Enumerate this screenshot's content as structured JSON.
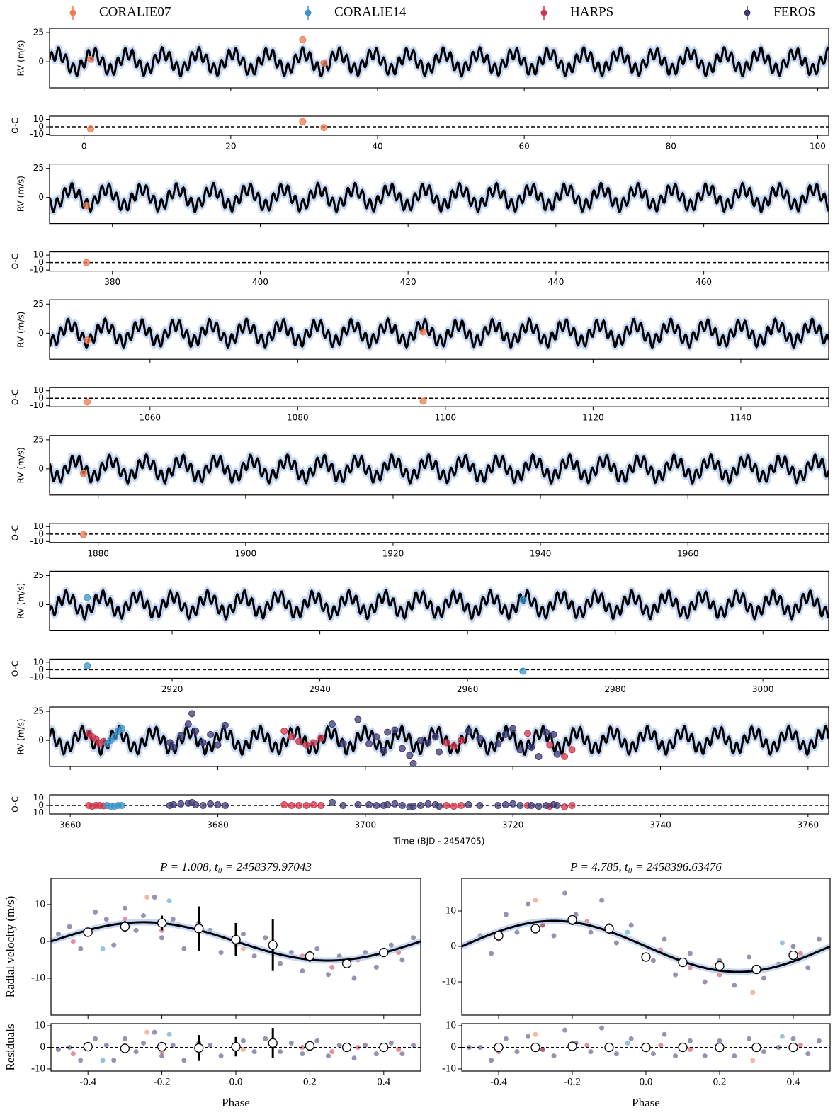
{
  "chart_data": {
    "type": "scatter",
    "series": [
      {
        "name": "CORALIE07",
        "color": "#f07a52"
      },
      {
        "name": "CORALIE14",
        "color": "#3b93c8"
      },
      {
        "name": "HARPS",
        "color": "#d1344a"
      },
      {
        "name": "FEROS",
        "color": "#3d3a73"
      }
    ],
    "model": [
      {
        "period": 1.008,
        "t0": 3674.97043,
        "semi_amplitude": 5.2
      },
      {
        "period": 4.785,
        "t0": 3691.63476,
        "semi_amplitude": 7.2
      }
    ],
    "rv_ylabel": "RV (m/s)",
    "oc_ylabel": "O-C",
    "xlabel": "Time (BJD - 2454705)",
    "rv_ylim": [
      -22.5,
      28.7
    ],
    "rv_yticks": [
      0,
      25
    ],
    "oc_ylim": [
      -11.4,
      14.3
    ],
    "oc_yticks": [
      -10,
      0,
      10
    ],
    "windows": [
      {
        "xlim": [
          -4.7,
          101.5
        ],
        "xticks": [
          0,
          20,
          40,
          60,
          80,
          100
        ],
        "series": [
          {
            "name": "CORALIE07",
            "x": [
              0.9,
              29.8,
              32.7
            ],
            "values": [
              2,
              19,
              -1
            ],
            "residuals": [
              -3,
              7,
              -1
            ]
          }
        ]
      },
      {
        "xlim": [
          371.5,
          476.9
        ],
        "xticks": [
          380,
          400,
          420,
          440,
          460
        ],
        "series": [
          {
            "name": "CORALIE07",
            "x": [
              376.5
            ],
            "values": [
              -7
            ],
            "residuals": [
              0
            ]
          }
        ]
      },
      {
        "xlim": [
          1046.4,
          1151.9
        ],
        "xticks": [
          1060,
          1080,
          1100,
          1120,
          1140
        ],
        "series": [
          {
            "name": "CORALIE07",
            "x": [
              1051.5,
              1097
            ],
            "values": [
              -6,
              1
            ],
            "residuals": [
              -5,
              -4
            ]
          }
        ]
      },
      {
        "xlim": [
          1873.4,
          1979.1
        ],
        "xticks": [
          1880,
          1900,
          1920,
          1940,
          1960
        ],
        "series": [
          {
            "name": "CORALIE07",
            "x": [
              1878
            ],
            "values": [
              -4
            ],
            "residuals": [
              -1
            ]
          }
        ]
      },
      {
        "xlim": [
          2903.4,
          3008.9
        ],
        "xticks": [
          2920,
          2940,
          2960,
          2980,
          3000
        ],
        "series": [
          {
            "name": "CORALIE14",
            "x": [
              2908.5,
              2967.5
            ],
            "values": [
              6,
              4
            ],
            "residuals": [
              5,
              -2
            ]
          }
        ]
      },
      {
        "xlim": [
          3657.2,
          3762.8
        ],
        "xticks": [
          3660,
          3680,
          3700,
          3720,
          3740,
          3760
        ],
        "series": [
          {
            "name": "HARPS",
            "x": [
              3662.5,
              3663,
              3663.5,
              3664,
              3664.5,
              3689,
              3690,
              3691,
              3692,
              3693,
              3694,
              3711,
              3712,
              3713,
              3722,
              3725,
              3727,
              3728
            ],
            "values": [
              6,
              3,
              1,
              -3,
              -1,
              8,
              3,
              -1,
              -4,
              -2,
              2,
              -2,
              -5,
              0,
              6,
              -4,
              -14,
              -8
            ],
            "residuals": [
              0,
              -1,
              0,
              0,
              -0.5,
              1,
              0,
              0,
              0,
              1,
              0,
              0,
              -1,
              0,
              0,
              -1,
              -2,
              0
            ]
          },
          {
            "name": "CORALIE14",
            "x": [
              3665,
              3665.5,
              3666,
              3666.5,
              3667
            ],
            "values": [
              -3,
              0,
              3,
              8,
              10
            ],
            "residuals": [
              0,
              -1,
              -1,
              0,
              0
            ]
          },
          {
            "name": "FEROS",
            "x": [
              3673.5,
              3674,
              3675,
              3676,
              3676.5,
              3677,
              3678,
              3679,
              3680,
              3681,
              3695.5,
              3697,
              3699,
              3700.5,
              3701.5,
              3702.5,
              3703,
              3704,
              3705,
              3706,
              3706.5,
              3707.5,
              3708.5,
              3709.5,
              3710,
              3714,
              3715.5,
              3718,
              3719,
              3720,
              3721,
              3722.5,
              3723.5,
              3724.5,
              3725.5,
              3726
            ],
            "values": [
              -2,
              -6,
              4,
              14,
              23,
              8,
              -2,
              5,
              -4,
              13,
              14,
              -3,
              18,
              -3,
              3,
              -9,
              7,
              9,
              -7,
              -13,
              -20,
              0,
              -2,
              3,
              -10,
              8,
              2,
              -3,
              5,
              10,
              -8,
              -6,
              -14,
              7,
              5,
              -12
            ],
            "residuals": [
              0,
              1,
              2,
              3,
              4,
              1,
              0,
              2,
              1,
              0,
              4,
              0,
              1,
              1,
              0,
              0,
              1,
              2,
              0,
              -2,
              -1,
              0,
              2,
              1,
              -1,
              1,
              0,
              0,
              1,
              2,
              0,
              0,
              -1,
              0,
              1,
              0
            ]
          }
        ]
      }
    ],
    "phase_xlabel": "Phase",
    "phase_ylabel": "Radial velocity (m/s)",
    "residual_ylabel": "Residuals",
    "phase_xlim": [
      -0.5,
      0.5
    ],
    "phase_xticks": [
      -0.4,
      -0.2,
      {
        "value": 0,
        "label": "0.0"
      },
      0.2,
      0.4
    ],
    "residual_ylim": [
      -11,
      11
    ],
    "residual_yticks": [
      -10,
      0,
      10
    ],
    "phase_panels": [
      {
        "title": "P = 1.008, t₀ = 2458379.97043",
        "ylim": [
          -20,
          17.1
        ],
        "yticks": [
          -10,
          0,
          10
        ],
        "series": [
          {
            "name": "FEROS",
            "x": [
              -0.48,
              -0.45,
              -0.42,
              -0.38,
              -0.35,
              -0.33,
              -0.3,
              -0.27,
              -0.25,
              -0.22,
              -0.2,
              -0.17,
              -0.14,
              -0.1,
              -0.07,
              -0.04,
              0.02,
              0.05,
              0.08,
              0.12,
              0.15,
              0.18,
              0.22,
              0.25,
              0.28,
              0.32,
              0.35,
              0.38,
              0.42,
              0.45,
              0.48
            ],
            "values": [
              2,
              4,
              -2,
              8,
              6,
              -1,
              9,
              3,
              7,
              12,
              1,
              6,
              -2,
              5,
              3,
              -3,
              2,
              -4,
              1,
              -6,
              -3,
              -8,
              -2,
              -9,
              -4,
              -10,
              -3,
              -7,
              -1,
              -5,
              1
            ],
            "residuals": [
              -1,
              0,
              -6,
              4,
              1,
              -6,
              4,
              -2,
              2,
              7,
              -4,
              1,
              -6,
              2,
              1,
              -4,
              3,
              -2,
              4,
              -2,
              2,
              -3,
              3,
              -4,
              1,
              -5,
              1,
              -3,
              2,
              -3,
              1
            ]
          },
          {
            "name": "HARPS",
            "x": [
              -0.44,
              -0.3,
              -0.2,
              0,
              0.18,
              0.26,
              0.33,
              0.44
            ],
            "values": [
              0,
              6,
              3,
              -1,
              -4,
              -7,
              -5,
              -3
            ],
            "residuals": [
              -3,
              1,
              -2,
              -1,
              0,
              -2,
              0,
              -1
            ]
          },
          {
            "name": "CORALIE14",
            "x": [
              -0.36,
              -0.18,
              0.3
            ],
            "values": [
              -2,
              11,
              -6
            ],
            "residuals": [
              -6,
              6,
              -1
            ]
          },
          {
            "name": "CORALIE07",
            "x": [
              -0.24,
              0.02,
              0.1
            ],
            "values": [
              12,
              -2,
              0
            ],
            "residuals": [
              7,
              -1,
              3
            ]
          }
        ],
        "bins": {
          "x": [
            -0.4,
            -0.3,
            -0.2,
            -0.1,
            0,
            0.1,
            0.2,
            0.3,
            0.4
          ],
          "values": [
            2.5,
            4,
            5,
            3.5,
            0.5,
            -1,
            -4,
            -6,
            -3
          ],
          "errors": [
            1,
            1.5,
            2,
            6,
            4.5,
            7,
            1.5,
            1,
            1
          ],
          "residuals": [
            0.3,
            -0.5,
            0.3,
            -0.3,
            0.3,
            2,
            0.7,
            0,
            0
          ]
        }
      },
      {
        "title": "P = 4.785, t₀ = 2458396.63476",
        "ylim": [
          -19.4,
          19.2
        ],
        "yticks": [
          -10,
          0,
          10
        ],
        "series": [
          {
            "name": "FEROS",
            "x": [
              -0.48,
              -0.45,
              -0.42,
              -0.38,
              -0.35,
              -0.32,
              -0.28,
              -0.25,
              -0.22,
              -0.19,
              -0.15,
              -0.12,
              -0.08,
              -0.04,
              0.02,
              0.05,
              0.08,
              0.12,
              0.16,
              0.2,
              0.24,
              0.28,
              0.32,
              0.36,
              0.4,
              0.44,
              0.47
            ],
            "values": [
              1,
              3,
              -2,
              9,
              4,
              12,
              6,
              3,
              15,
              9,
              4,
              13,
              1,
              6,
              -4,
              2,
              -8,
              -2,
              -10,
              -4,
              -11,
              -3,
              -9,
              -5,
              0,
              -6,
              2
            ],
            "residuals": [
              0,
              0,
              -6,
              4,
              -2,
              5,
              -1,
              -4,
              8,
              2,
              -2,
              9,
              -3,
              4,
              -3,
              6,
              -4,
              3,
              -4,
              3,
              -4,
              4,
              -2,
              0,
              4,
              -3,
              3
            ]
          },
          {
            "name": "HARPS",
            "x": [
              -0.4,
              -0.28,
              -0.16,
              0.04,
              0.12,
              0.2,
              0.3,
              0.42
            ],
            "values": [
              2,
              6,
              7,
              -1,
              -6,
              -8,
              -7,
              -2
            ],
            "residuals": [
              -2,
              -1,
              1,
              1,
              -1,
              -1,
              0,
              1
            ]
          },
          {
            "name": "CORALIE14",
            "x": [
              -0.05,
              0.37
            ],
            "values": [
              4,
              1
            ],
            "residuals": [
              2,
              5
            ]
          },
          {
            "name": "CORALIE07",
            "x": [
              -0.3,
              0.29
            ],
            "values": [
              13,
              -13
            ],
            "residuals": [
              6,
              -6
            ]
          }
        ],
        "bins": {
          "x": [
            -0.4,
            -0.3,
            -0.2,
            -0.1,
            0,
            0.1,
            0.2,
            0.3,
            0.4
          ],
          "values": [
            3,
            5,
            7.5,
            5,
            -3,
            -4.5,
            -5.5,
            -6.5,
            -2.5
          ],
          "errors": [
            1,
            1,
            1.5,
            1.5,
            1,
            1,
            1,
            1,
            1
          ],
          "residuals": [
            0,
            0,
            0.5,
            0,
            0,
            0,
            0,
            0,
            0
          ]
        }
      }
    ]
  }
}
